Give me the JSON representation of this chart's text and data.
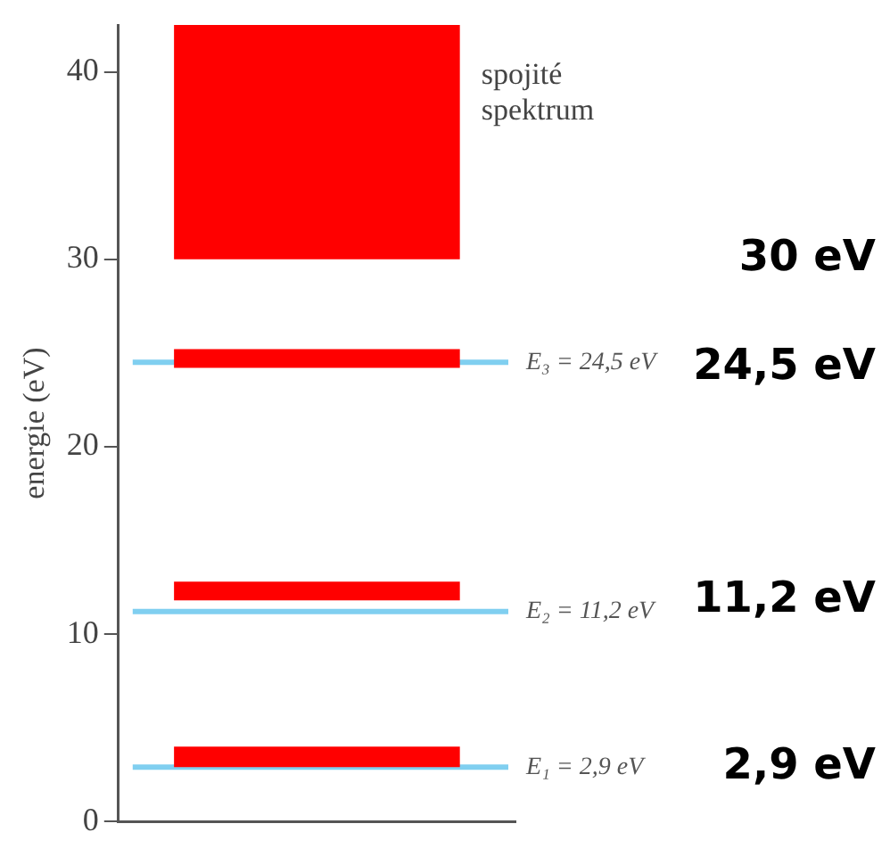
{
  "chart_data": {
    "type": "bar",
    "ylabel": "energie (eV)",
    "categories": [
      null
    ],
    "ylim": [
      0,
      42.5
    ],
    "yticks": [
      0,
      10,
      20,
      30,
      40
    ],
    "grid": false,
    "legend": false,
    "series": [
      {
        "name": "spojité spektrum",
        "color": "#ff0000",
        "values": [
          12.5
        ],
        "base": [
          30
        ]
      },
      {
        "color": "#ff0000",
        "values": [
          1.0
        ],
        "base": [
          24.2
        ]
      },
      {
        "color": "#ff0000",
        "values": [
          1.0
        ],
        "base": [
          11.8
        ]
      },
      {
        "color": "#ff0000",
        "values": [
          1.1
        ],
        "base": [
          2.9
        ]
      }
    ],
    "ref_lines": [
      {
        "axis": "y",
        "value": 24.5,
        "label": "E₃ = 24,5 eV",
        "color": "#80cff0"
      },
      {
        "axis": "y",
        "value": 11.2,
        "label": "E₂ = 11,2 eV",
        "color": "#80cff0"
      },
      {
        "axis": "y",
        "value": 2.9,
        "label": "E₁ = 2,9 eV",
        "color": "#80cff0"
      }
    ],
    "annotations": [
      "30 eV",
      "24,5 eV",
      "11,2 eV",
      "2,9 eV"
    ]
  }
}
